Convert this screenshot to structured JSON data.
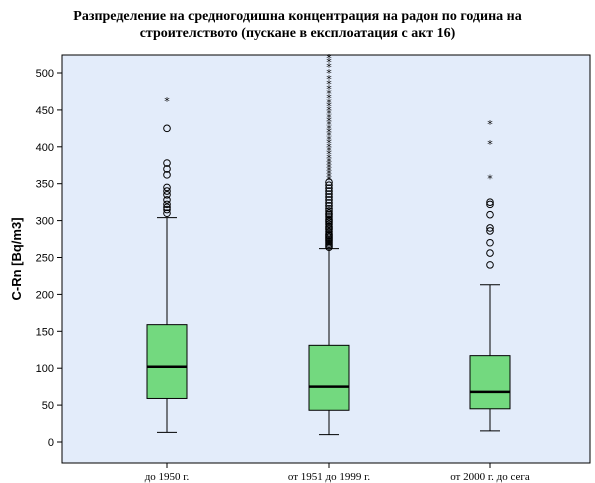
{
  "chart_data": {
    "type": "boxplot",
    "title_lines": [
      "Разпределение на средногодишна концентрация на радон по година на",
      "строителството (пускане в експлоатация с акт 16)"
    ],
    "xlabel": "",
    "ylabel": "C-Rn [Bq/m3]",
    "ylim": [
      -25,
      520
    ],
    "yticks": [
      0,
      50,
      100,
      150,
      200,
      250,
      300,
      350,
      400,
      450,
      500
    ],
    "grid": false,
    "colors": {
      "plot_bg": "#e3ecfa",
      "box_fill": "#73d97f",
      "median": "#000000"
    },
    "categories": [
      "до 1950 г.",
      "от 1951 до 1999 г.",
      "от 2000 г. до сега"
    ],
    "boxes": [
      {
        "category": "до 1950 г.",
        "whisker_low": 13,
        "q1": 59,
        "median": 102,
        "q3": 159,
        "whisker_high": 304,
        "outliers": [
          310,
          315,
          318,
          322,
          328,
          335,
          340,
          345,
          362,
          370,
          378,
          425
        ],
        "extremes": [
          462
        ]
      },
      {
        "category": "от 1951 до 1999 г.",
        "whisker_low": 10,
        "q1": 43,
        "median": 75,
        "q3": 131,
        "whisker_high": 262,
        "outliers": [
          264,
          266,
          268,
          270,
          272,
          274,
          276,
          278,
          280,
          282,
          285,
          288,
          290,
          292,
          295,
          298,
          300,
          302,
          305,
          308,
          310,
          313,
          316,
          320,
          324,
          328,
          332,
          336,
          340,
          344,
          348,
          352
        ],
        "extremes": [
          356,
          360,
          364,
          368,
          372,
          376,
          380,
          385,
          390,
          395,
          400,
          405,
          410,
          415,
          420,
          425,
          430,
          435,
          440,
          445,
          450,
          455,
          460,
          466,
          472,
          478,
          485,
          492,
          500,
          508,
          515,
          520
        ]
      },
      {
        "category": "от 2000 г. до сега",
        "whisker_low": 15,
        "q1": 45,
        "median": 68,
        "q3": 117,
        "whisker_high": 213,
        "outliers": [
          240,
          256,
          270,
          286,
          290,
          308,
          322,
          325
        ],
        "extremes": [
          357,
          404,
          431
        ]
      }
    ]
  }
}
